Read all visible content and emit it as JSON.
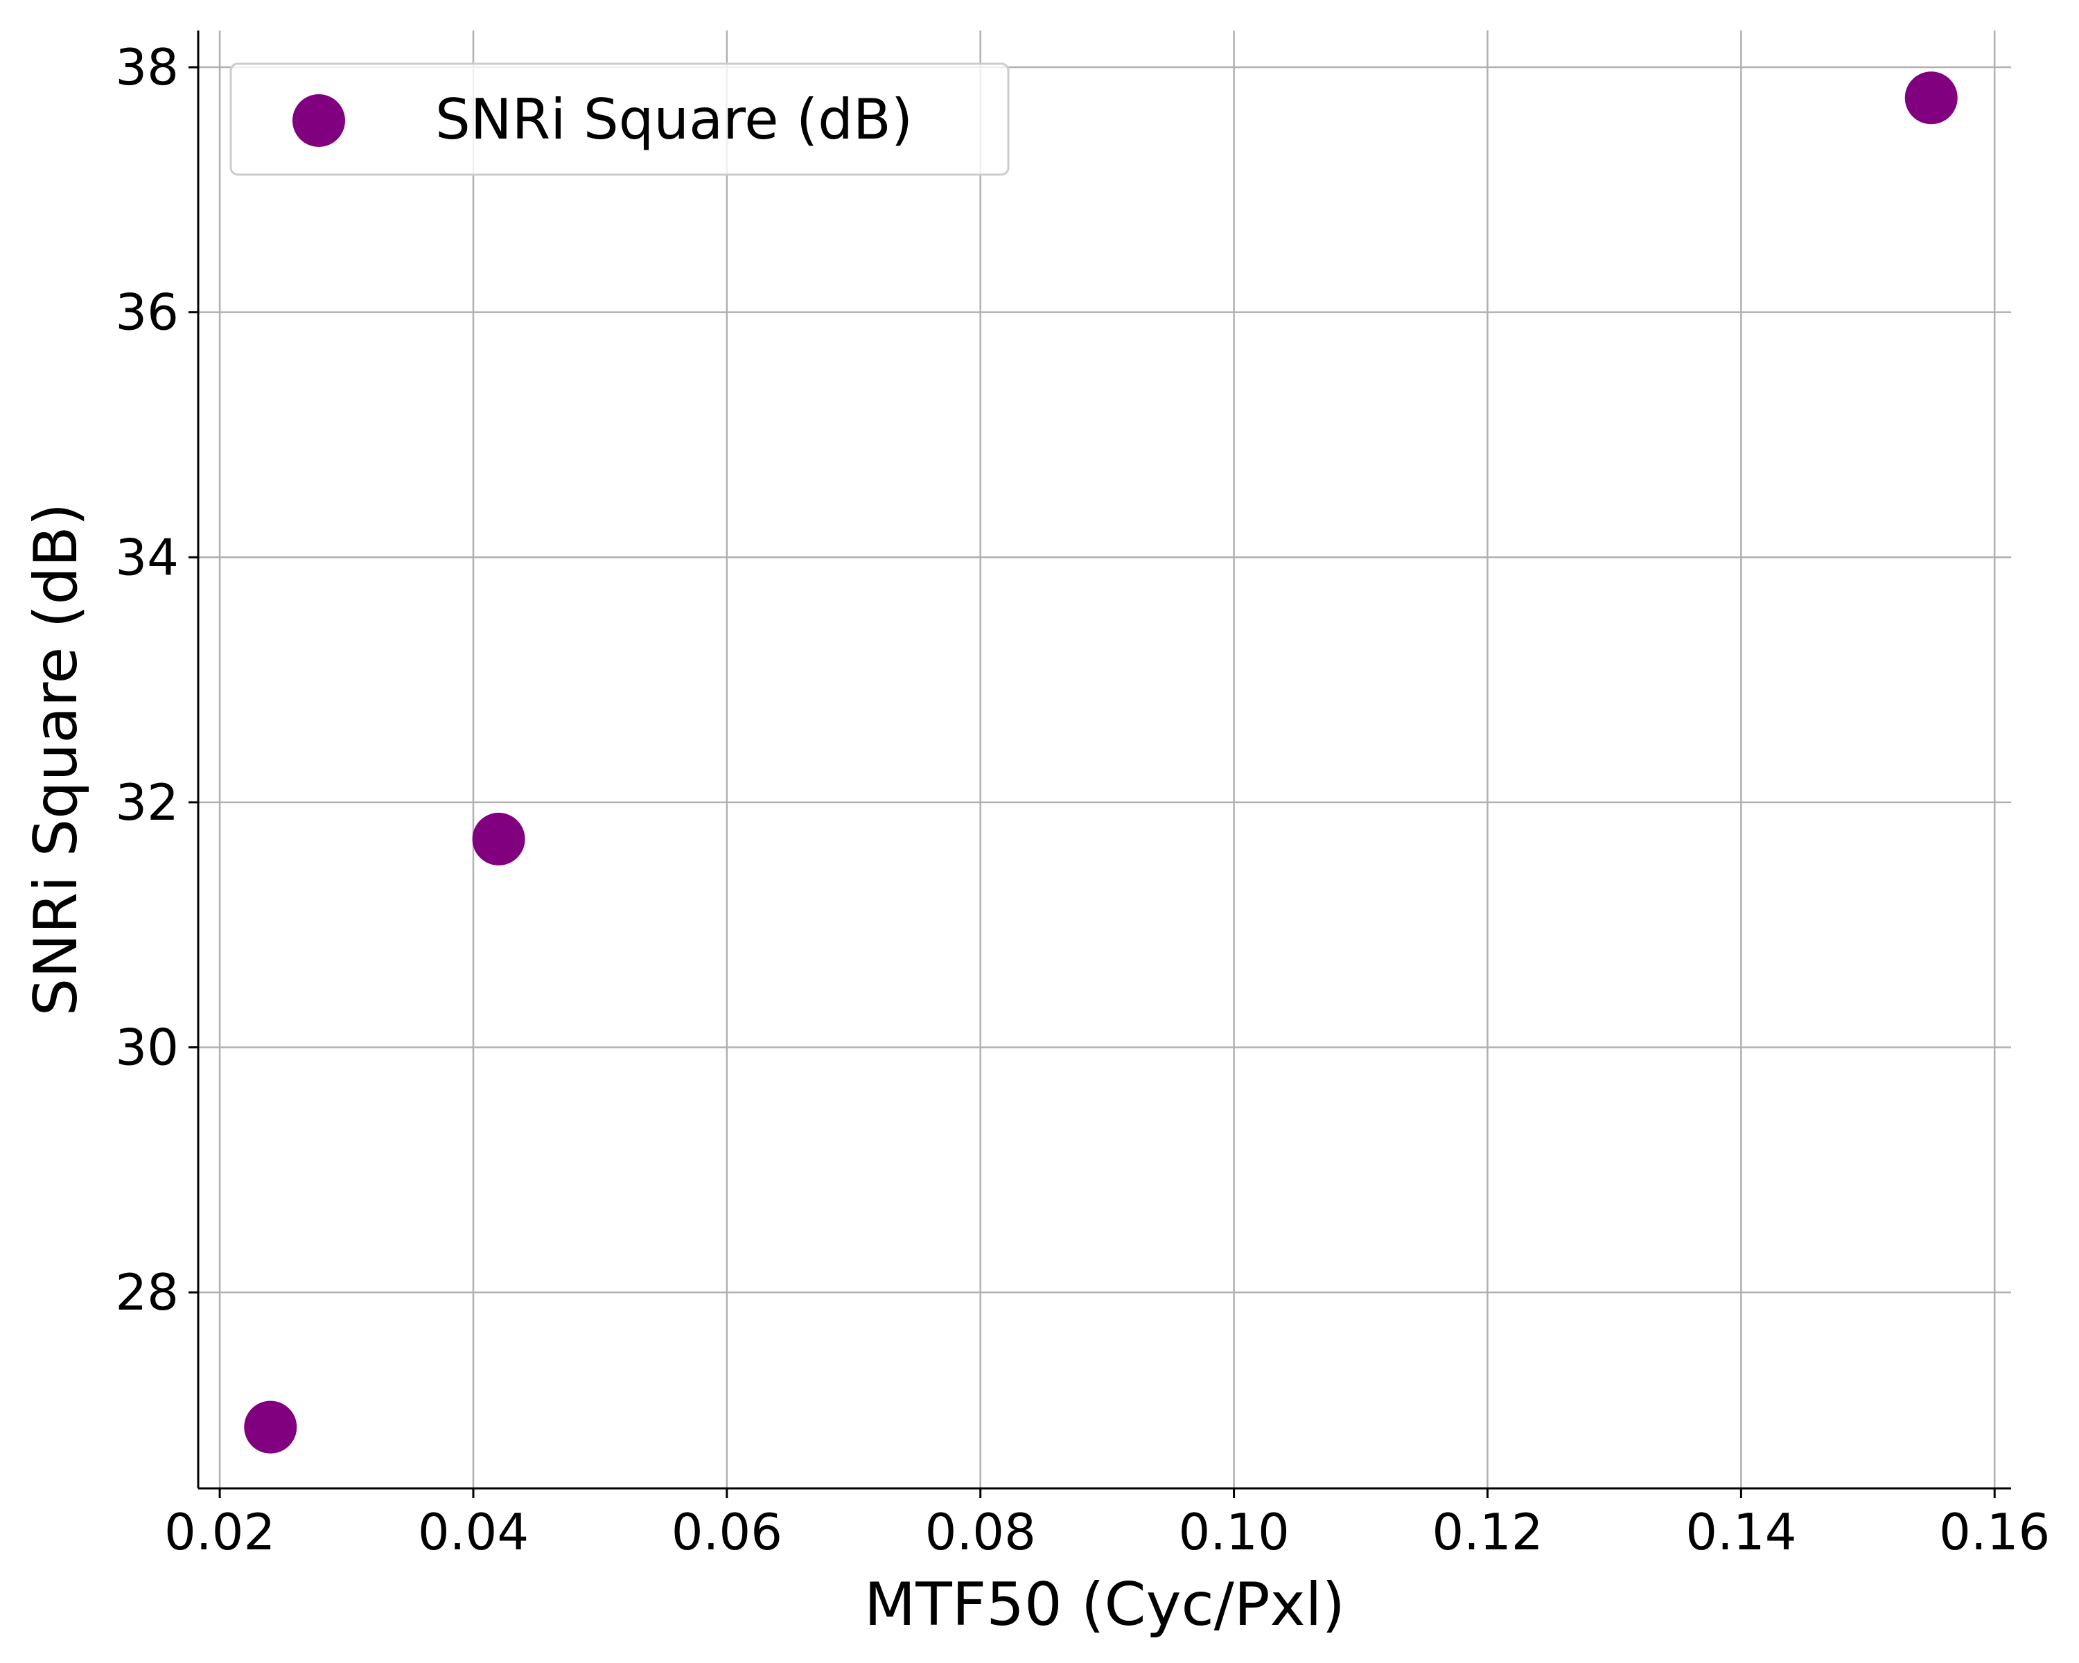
{
  "chart_data": {
    "type": "scatter",
    "title": "",
    "xlabel": "MTF50 (Cyc/Pxl)",
    "ylabel": "SNRi Square (dB)",
    "xlim": [
      0.0183,
      0.1613
    ],
    "ylim": [
      26.4,
      38.3
    ],
    "xticks": [
      0.02,
      0.04,
      0.06,
      0.08,
      0.1,
      0.12,
      0.14,
      0.16
    ],
    "xtick_labels": [
      "0.02",
      "0.04",
      "0.06",
      "0.08",
      "0.10",
      "0.12",
      "0.14",
      "0.16"
    ],
    "yticks": [
      28,
      30,
      32,
      34,
      36,
      38
    ],
    "ytick_labels": [
      "28",
      "30",
      "32",
      "34",
      "36",
      "38"
    ],
    "grid": true,
    "legend_position": "top-left",
    "series": [
      {
        "name": "SNRi Square (dB)",
        "color": "#800080",
        "x": [
          0.024,
          0.042,
          0.155
        ],
        "y": [
          26.9,
          31.7,
          37.75
        ]
      }
    ]
  }
}
